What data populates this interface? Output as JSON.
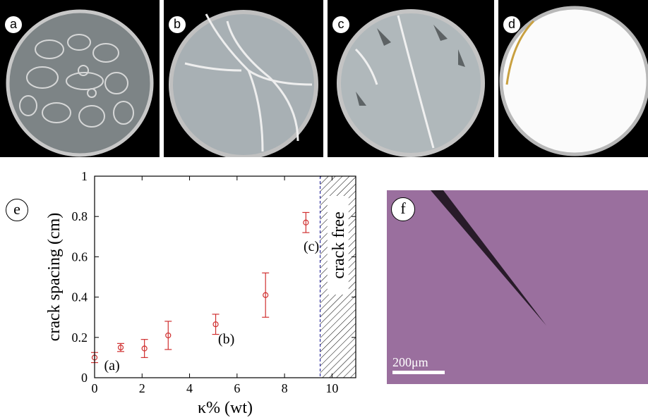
{
  "panels": {
    "a": {
      "tag": "a"
    },
    "b": {
      "tag": "b"
    },
    "c": {
      "tag": "c"
    },
    "d": {
      "tag": "d"
    },
    "e": {
      "tag": "e"
    },
    "f": {
      "tag": "f",
      "scale_label": "200μm"
    }
  },
  "colors": {
    "marker": "#d03030",
    "hatch_border": "#3030a0",
    "micrograph": "#9a6f9e"
  },
  "chart_data": {
    "type": "scatter",
    "xlabel": "κ% (wt)",
    "ylabel": "crack spacing (cm)",
    "xlim": [
      0,
      11
    ],
    "ylim": [
      0,
      1
    ],
    "xticks": [
      0,
      2,
      4,
      6,
      8,
      10
    ],
    "yticks": [
      0,
      0.2,
      0.4,
      0.6,
      0.8,
      1
    ],
    "xtick_labels": [
      "0",
      "2",
      "4",
      "6",
      "8",
      "10"
    ],
    "ytick_labels": [
      "0",
      "0.2",
      "0.4",
      "0.6",
      "0.8",
      "1"
    ],
    "points": [
      {
        "x": 0,
        "y": 0.1,
        "err": 0.025
      },
      {
        "x": 1.1,
        "y": 0.15,
        "err": 0.02
      },
      {
        "x": 2.1,
        "y": 0.145,
        "err": 0.045
      },
      {
        "x": 3.1,
        "y": 0.21,
        "err": 0.07
      },
      {
        "x": 5.1,
        "y": 0.265,
        "err": 0.05
      },
      {
        "x": 7.2,
        "y": 0.41,
        "err": 0.11
      },
      {
        "x": 8.9,
        "y": 0.77,
        "err": 0.05
      }
    ],
    "annotations": [
      {
        "text": "(a)",
        "x": 0.4,
        "y": 0.06
      },
      {
        "text": "(b)",
        "x": 5.2,
        "y": 0.19
      },
      {
        "text": "(c)",
        "x": 8.8,
        "y": 0.65
      }
    ],
    "crack_free": {
      "x_start": 9.5,
      "x_end": 11,
      "label": "crack free"
    }
  }
}
